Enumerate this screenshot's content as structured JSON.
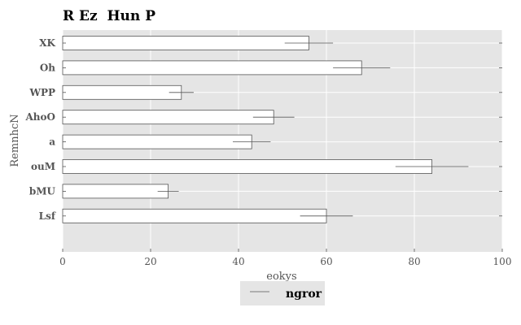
{
  "chart_data": {
    "type": "bar",
    "orientation": "horizontal",
    "title": "R Ez  Hun P",
    "xlabel": "eokys",
    "ylabel": "RemnhcN",
    "categories": [
      "XK",
      "Oh",
      "WPP",
      "AhoO",
      "a",
      "ouM",
      "bMU",
      "Lsf"
    ],
    "series": [
      {
        "name": "ngror",
        "values": [
          56,
          68,
          27,
          48,
          43,
          84,
          24,
          60
        ],
        "errors": [
          5.5,
          6.5,
          2.8,
          4.7,
          4.3,
          8.3,
          2.4,
          6.0
        ]
      }
    ],
    "xlim": [
      0,
      100
    ],
    "xticks": [
      "0",
      "20",
      "40",
      "60",
      "80",
      "100"
    ],
    "grid": true,
    "legend_position": "bottom-center",
    "colors": {
      "background": "#e5e5e5",
      "bar_fill": "#ffffff",
      "bar_edge": "#555555",
      "grid": "#ffffff",
      "legend_bg": "#e5e5e5"
    }
  }
}
